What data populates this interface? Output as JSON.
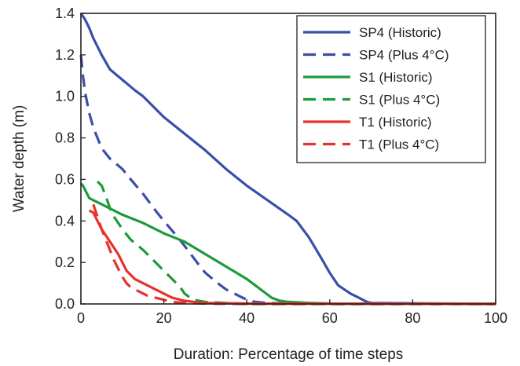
{
  "chart_data": {
    "type": "line",
    "title": "",
    "xlabel": "Duration: Percentage of time steps",
    "ylabel": "Water depth (m)",
    "xlim": [
      0,
      100
    ],
    "ylim": [
      0,
      1.4
    ],
    "xticks": [
      0,
      20,
      40,
      60,
      80,
      100
    ],
    "yticks": [
      0.0,
      0.2,
      0.4,
      0.6,
      0.8,
      1.0,
      1.2,
      1.4
    ],
    "xtick_labels": [
      "0",
      "20",
      "40",
      "60",
      "80",
      "100"
    ],
    "ytick_labels": [
      "0.0",
      "0.2",
      "0.4",
      "0.6",
      "0.8",
      "1.0",
      "1.2",
      "1.4"
    ],
    "grid": false,
    "legend_position": "top-right",
    "series": [
      {
        "name": "SP4 (Historic)",
        "color": "#3a4fa8",
        "dash": "solid",
        "x": [
          0,
          1,
          2,
          3,
          4,
          5,
          7,
          10,
          13,
          15,
          20,
          25,
          30,
          35,
          40,
          45,
          50,
          52,
          55,
          58,
          60,
          62,
          65,
          67,
          69,
          70,
          80,
          100
        ],
        "y": [
          1.4,
          1.37,
          1.33,
          1.28,
          1.24,
          1.2,
          1.13,
          1.08,
          1.03,
          1.0,
          0.9,
          0.82,
          0.74,
          0.65,
          0.57,
          0.5,
          0.43,
          0.4,
          0.32,
          0.22,
          0.15,
          0.09,
          0.05,
          0.03,
          0.01,
          0.005,
          0.003,
          0.0
        ]
      },
      {
        "name": "SP4 (Plus 4°C)",
        "color": "#3a4fa8",
        "dash": "dashed",
        "x": [
          0,
          0.5,
          1,
          2,
          3,
          4,
          5,
          7,
          10,
          12,
          15,
          18,
          20,
          23,
          25,
          28,
          30,
          33,
          35,
          38,
          40,
          42,
          45,
          50,
          60,
          100
        ],
        "y": [
          1.2,
          1.1,
          1.02,
          0.92,
          0.85,
          0.8,
          0.75,
          0.7,
          0.65,
          0.6,
          0.53,
          0.45,
          0.4,
          0.33,
          0.28,
          0.2,
          0.15,
          0.1,
          0.07,
          0.04,
          0.02,
          0.01,
          0.005,
          0.002,
          0.0,
          0.0
        ]
      },
      {
        "name": "S1 (Historic)",
        "color": "#1e9a3a",
        "dash": "solid",
        "x": [
          0,
          0.5,
          1,
          2,
          3,
          5,
          7,
          10,
          15,
          20,
          25,
          30,
          35,
          40,
          42,
          44,
          46,
          48,
          50,
          55,
          60,
          100
        ],
        "y": [
          0.58,
          0.57,
          0.55,
          0.51,
          0.5,
          0.48,
          0.46,
          0.43,
          0.39,
          0.34,
          0.3,
          0.24,
          0.18,
          0.12,
          0.09,
          0.06,
          0.03,
          0.015,
          0.01,
          0.005,
          0.002,
          0.0
        ]
      },
      {
        "name": "S1 (Plus 4°C)",
        "color": "#1e9a3a",
        "dash": "dashed",
        "x": [
          4,
          5,
          6,
          7,
          8,
          9,
          10,
          12,
          15,
          18,
          20,
          22,
          24,
          25,
          27,
          30,
          40,
          100
        ],
        "y": [
          0.59,
          0.57,
          0.52,
          0.46,
          0.42,
          0.39,
          0.36,
          0.31,
          0.26,
          0.2,
          0.16,
          0.12,
          0.08,
          0.05,
          0.02,
          0.01,
          0.0,
          0.0
        ]
      },
      {
        "name": "T1 (Historic)",
        "color": "#e8312b",
        "dash": "solid",
        "x": [
          2,
          3,
          4,
          5,
          6,
          7,
          8,
          9,
          10,
          11,
          13,
          15,
          17,
          20,
          22,
          25,
          28,
          30,
          40,
          100
        ],
        "y": [
          0.45,
          0.44,
          0.4,
          0.36,
          0.33,
          0.3,
          0.27,
          0.24,
          0.2,
          0.16,
          0.12,
          0.1,
          0.08,
          0.05,
          0.03,
          0.015,
          0.008,
          0.005,
          0.002,
          0.0
        ]
      },
      {
        "name": "T1 (Plus 4°C)",
        "color": "#e8312b",
        "dash": "dashed",
        "x": [
          3,
          4,
          5,
          6,
          7,
          8,
          9,
          10,
          11,
          12,
          14,
          16,
          18,
          20,
          22,
          25,
          30,
          40,
          100
        ],
        "y": [
          0.48,
          0.42,
          0.36,
          0.31,
          0.26,
          0.21,
          0.17,
          0.13,
          0.1,
          0.08,
          0.06,
          0.04,
          0.03,
          0.02,
          0.01,
          0.005,
          0.002,
          0.0,
          0.0
        ]
      }
    ]
  }
}
